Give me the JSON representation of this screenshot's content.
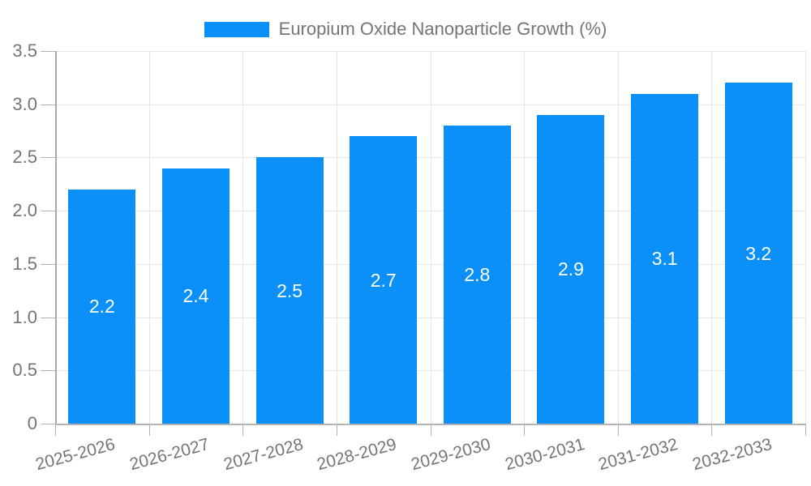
{
  "legend": {
    "label": "Europium Oxide Nanoparticle Growth (%)",
    "swatch_color": "#0a90f8"
  },
  "chart_data": {
    "type": "bar",
    "title": "Europium Oxide Nanoparticle Growth (%)",
    "categories": [
      "2025-2026",
      "2026-2027",
      "2027-2028",
      "2028-2029",
      "2029-2030",
      "2030-2031",
      "2031-2032",
      "2032-2033"
    ],
    "values": [
      2.2,
      2.4,
      2.5,
      2.7,
      2.8,
      2.9,
      3.1,
      3.2
    ],
    "value_labels": [
      "2.2",
      "2.4",
      "2.5",
      "2.7",
      "2.8",
      "2.9",
      "3.1",
      "3.2"
    ],
    "xlabel": "",
    "ylabel": "",
    "ylim": [
      0,
      3.5
    ],
    "ytick_step": 0.5,
    "ytick_labels": [
      "0",
      "0.5",
      "1.0",
      "1.5",
      "2.0",
      "2.5",
      "3.0",
      "3.5"
    ],
    "grid": true,
    "legend_position": "top-center"
  },
  "colors": {
    "bar": "#0a90f8",
    "axis_text": "#757575",
    "value_label_text": "#ffffff",
    "gridline": "#e5e5e5",
    "axis_line": "#b3b3b3",
    "background": "#ffffff"
  }
}
